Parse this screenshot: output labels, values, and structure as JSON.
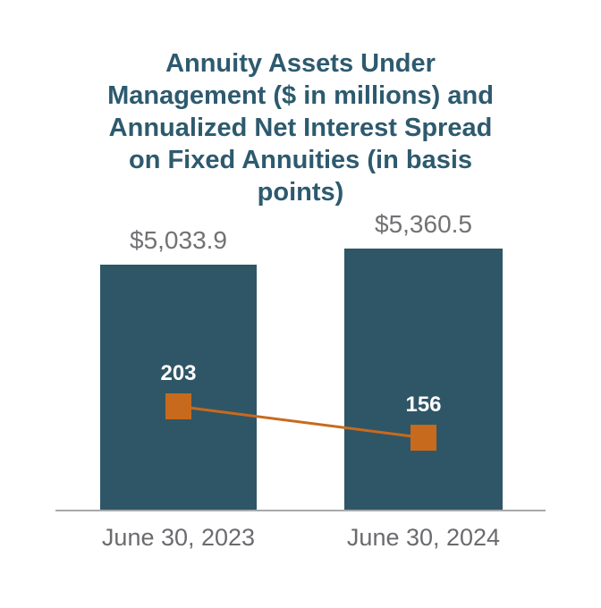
{
  "chart": {
    "title_lines": [
      "Annuity Assets Under",
      "Management ($ in millions) and",
      "Annualized Net Interest Spread",
      "on Fixed Annuities (in basis",
      "points)"
    ]
  },
  "chart_data": {
    "type": "bar",
    "title": "Annuity Assets Under Management ($ in millions) and Annualized Net Interest Spread on Fixed Annuities (in basis points)",
    "categories": [
      "June 30, 2023",
      "June 30, 2024"
    ],
    "series": [
      {
        "name": "Annuity Assets Under Management",
        "type": "bar",
        "unit": "$ in millions",
        "values": [
          5033.9,
          5360.5
        ],
        "labels": [
          "$5,033.9",
          "$5,360.5"
        ],
        "color": "#2F5666"
      },
      {
        "name": "Annualized Net Interest Spread on Fixed Annuities",
        "type": "line",
        "unit": "basis points",
        "values": [
          203,
          156
        ],
        "labels": [
          "203",
          "156"
        ],
        "color": "#C86A1D",
        "marker": "square"
      }
    ],
    "legend_position": "none",
    "grid": false,
    "bar_axis_range": [
      0,
      5600
    ],
    "colors": {
      "title": "#2D5A6E",
      "value_label": "#717275",
      "category_label": "#6A6B6E",
      "axis_line": "#A7A9AC",
      "marker_label": "#FFFFFF",
      "background": "#FFFFFF"
    }
  }
}
